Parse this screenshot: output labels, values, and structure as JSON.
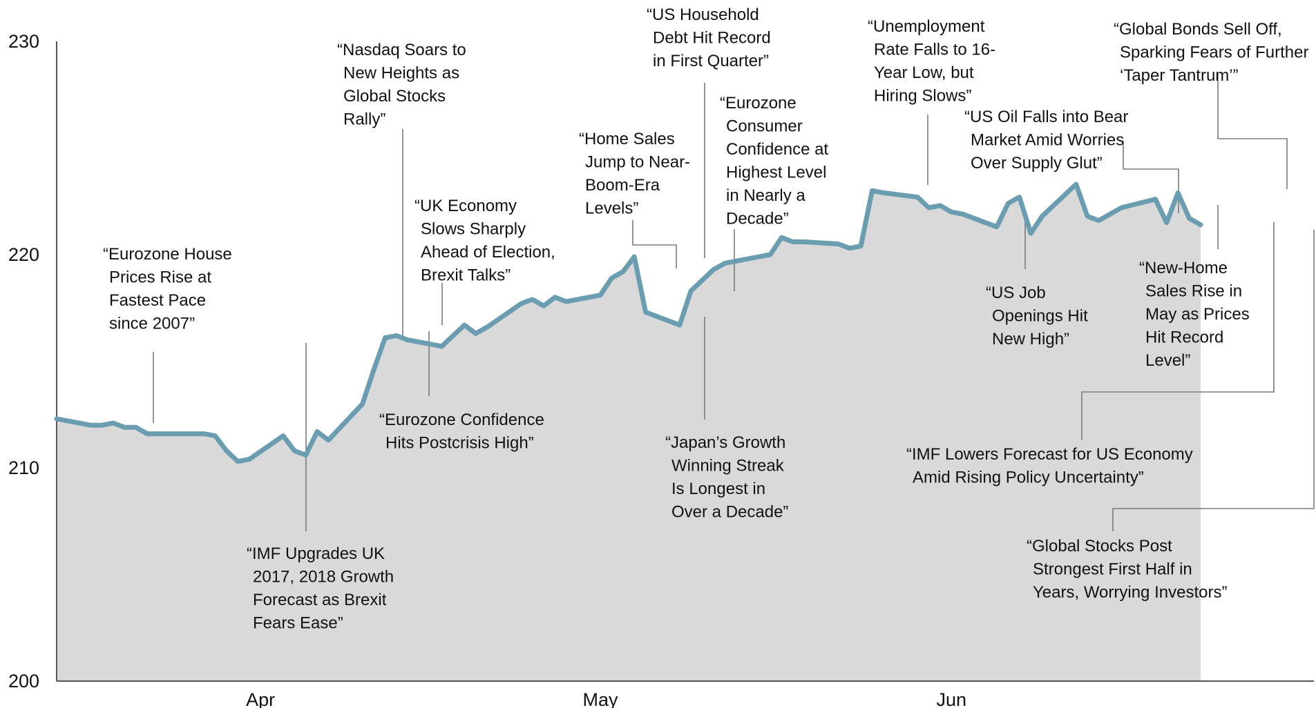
{
  "colors": {
    "line": "#6a9db0",
    "area": "#d9d9d9",
    "axis": "#555555",
    "leader": "#7a7a7a",
    "text": "#111111"
  },
  "chart_data": {
    "type": "area",
    "title": "",
    "xlabel": "",
    "ylabel": "",
    "ylim": [
      200,
      230
    ],
    "yticks": [
      200,
      210,
      220,
      230
    ],
    "xlim": [
      "2017-03-14",
      "2017-07-03"
    ],
    "xticks": [
      {
        "date": "2017-04-01",
        "label": "Apr"
      },
      {
        "date": "2017-05-01",
        "label": "May"
      },
      {
        "date": "2017-06-01",
        "label": "Jun"
      }
    ],
    "grid": false,
    "series": [
      {
        "points": [
          [
            "2017-03-14",
            212.3
          ],
          [
            "2017-03-17",
            212.0
          ],
          [
            "2017-03-18",
            212.0
          ],
          [
            "2017-03-19",
            212.1
          ],
          [
            "2017-03-20",
            211.9
          ],
          [
            "2017-03-21",
            211.9
          ],
          [
            "2017-03-22",
            211.6
          ],
          [
            "2017-03-23",
            211.6
          ],
          [
            "2017-03-27",
            211.6
          ],
          [
            "2017-03-28",
            211.5
          ],
          [
            "2017-03-29",
            210.8
          ],
          [
            "2017-03-30",
            210.3
          ],
          [
            "2017-03-31",
            210.4
          ],
          [
            "2017-04-03",
            211.5
          ],
          [
            "2017-04-04",
            210.8
          ],
          [
            "2017-04-05",
            210.6
          ],
          [
            "2017-04-06",
            211.7
          ],
          [
            "2017-04-07",
            211.3
          ],
          [
            "2017-04-10",
            213.0
          ],
          [
            "2017-04-11",
            214.6
          ],
          [
            "2017-04-12",
            216.1
          ],
          [
            "2017-04-13",
            216.2
          ],
          [
            "2017-04-14",
            216.0
          ],
          [
            "2017-04-17",
            215.7
          ],
          [
            "2017-04-18",
            216.2
          ],
          [
            "2017-04-19",
            216.7
          ],
          [
            "2017-04-20",
            216.3
          ],
          [
            "2017-04-21",
            216.6
          ],
          [
            "2017-04-24",
            217.7
          ],
          [
            "2017-04-25",
            217.9
          ],
          [
            "2017-04-26",
            217.6
          ],
          [
            "2017-04-27",
            218.0
          ],
          [
            "2017-04-28",
            217.8
          ],
          [
            "2017-05-01",
            218.1
          ],
          [
            "2017-05-02",
            218.9
          ],
          [
            "2017-05-03",
            219.2
          ],
          [
            "2017-05-04",
            219.9
          ],
          [
            "2017-05-05",
            217.3
          ],
          [
            "2017-05-08",
            216.7
          ],
          [
            "2017-05-09",
            218.3
          ],
          [
            "2017-05-10",
            218.8
          ],
          [
            "2017-05-11",
            219.3
          ],
          [
            "2017-05-12",
            219.6
          ],
          [
            "2017-05-15",
            219.9
          ],
          [
            "2017-05-16",
            220.0
          ],
          [
            "2017-05-17",
            220.8
          ],
          [
            "2017-05-18",
            220.6
          ],
          [
            "2017-05-19",
            220.6
          ],
          [
            "2017-05-22",
            220.5
          ],
          [
            "2017-05-23",
            220.3
          ],
          [
            "2017-05-24",
            220.4
          ],
          [
            "2017-05-25",
            223.0
          ],
          [
            "2017-05-26",
            222.9
          ],
          [
            "2017-05-29",
            222.7
          ],
          [
            "2017-05-30",
            222.2
          ],
          [
            "2017-05-31",
            222.3
          ],
          [
            "2017-06-01",
            222.0
          ],
          [
            "2017-06-02",
            221.9
          ],
          [
            "2017-06-05",
            221.3
          ],
          [
            "2017-06-06",
            222.4
          ],
          [
            "2017-06-07",
            222.7
          ],
          [
            "2017-06-08",
            221.0
          ],
          [
            "2017-06-09",
            221.8
          ],
          [
            "2017-06-12",
            223.3
          ],
          [
            "2017-06-13",
            221.8
          ],
          [
            "2017-06-14",
            221.6
          ],
          [
            "2017-06-15",
            221.9
          ],
          [
            "2017-06-16",
            222.2
          ],
          [
            "2017-06-19",
            222.6
          ],
          [
            "2017-06-20",
            221.5
          ],
          [
            "2017-06-21",
            222.9
          ],
          [
            "2017-06-22",
            221.7
          ],
          [
            "2017-06-23",
            221.4
          ]
        ]
      }
    ],
    "annotations": [
      {
        "lines": [
          "“Eurozone House",
          "Prices Rise at",
          "Fastest Pace",
          "since 2007”"
        ]
      },
      {
        "lines": [
          "“IMF Upgrades UK",
          "2017, 2018 Growth",
          "Forecast as Brexit",
          "Fears Ease”"
        ]
      },
      {
        "lines": [
          "“Nasdaq Soars to",
          "New Heights as",
          "Global Stocks",
          "Rally”"
        ]
      },
      {
        "lines": [
          "“UK Economy",
          "Slows Sharply",
          "Ahead of Election,",
          "Brexit Talks”"
        ]
      },
      {
        "lines": [
          "“Eurozone Confidence",
          "Hits Postcrisis High”"
        ]
      },
      {
        "lines": [
          "“Home Sales",
          "Jump to Near-",
          "Boom-Era",
          "Levels”"
        ]
      },
      {
        "lines": [
          "“US Household",
          "Debt Hit Record",
          "in First Quarter”"
        ]
      },
      {
        "lines": [
          "“Eurozone",
          "Consumer",
          "Confidence at",
          "Highest Level",
          "in Nearly a",
          "Decade”"
        ]
      },
      {
        "lines": [
          "“Japan’s Growth",
          "Winning Streak",
          "Is Longest in",
          "Over a Decade”"
        ]
      },
      {
        "lines": [
          "“Unemployment",
          "Rate Falls to 16-",
          "Year Low, but",
          "Hiring Slows”"
        ]
      },
      {
        "lines": [
          "“US Job",
          "Openings Hit",
          "New High”"
        ]
      },
      {
        "lines": [
          "“US Oil Falls into Bear",
          "Market Amid Worries",
          "Over Supply Glut”"
        ]
      },
      {
        "lines": [
          "“Global Bonds Sell Off,",
          "Sparking Fears of Further",
          "‘Taper Tantrum’”"
        ]
      },
      {
        "lines": [
          "“New-Home",
          "Sales Rise in",
          "May as Prices",
          "Hit Record",
          "Level”"
        ]
      },
      {
        "lines": [
          "“IMF Lowers Forecast for US Economy",
          "Amid Rising Policy Uncertainty”"
        ]
      },
      {
        "lines": [
          "“Global Stocks Post",
          "Strongest First Half in",
          "Years, Worrying Investors”"
        ]
      }
    ]
  }
}
